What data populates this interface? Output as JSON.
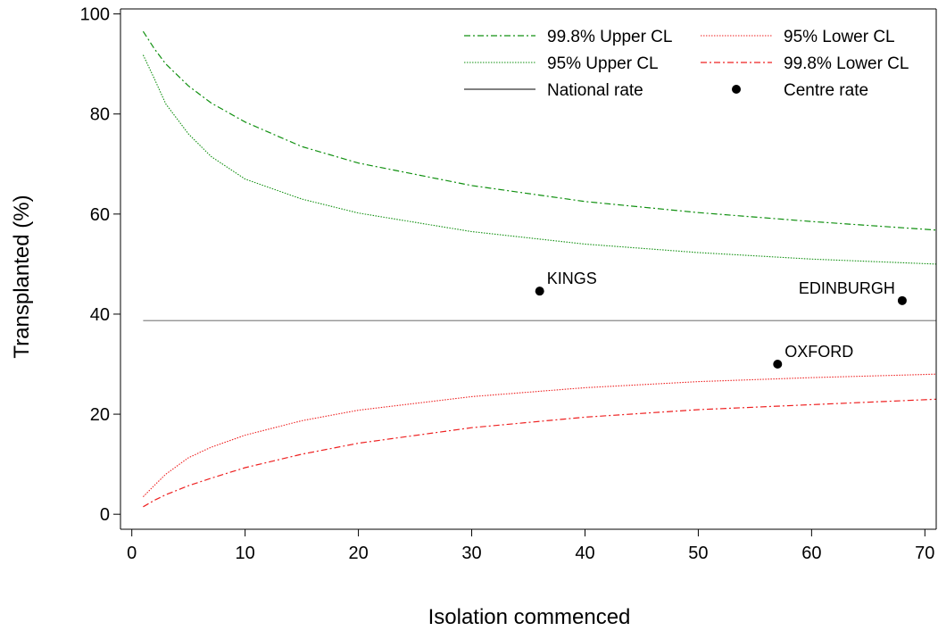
{
  "chart_data": {
    "type": "line",
    "title": "",
    "xlabel": "Isolation commenced",
    "ylabel": "Transplanted (%)",
    "xlim": [
      -1,
      71
    ],
    "ylim": [
      -3,
      101
    ],
    "x_ticks": [
      0,
      10,
      20,
      30,
      40,
      50,
      60,
      70
    ],
    "y_ticks": [
      0,
      20,
      40,
      60,
      80,
      100
    ],
    "grid": false,
    "legend_position": "top-right",
    "legend": {
      "upper998": "99.8% Upper CL",
      "upper95": "95% Upper CL",
      "national": "National rate",
      "lower95": "95% Lower CL",
      "lower998": "99.8% Lower CL",
      "centre": "Centre rate"
    },
    "colors": {
      "upper": "#109010",
      "lower": "#ee2020",
      "national": "#888888",
      "points": "#000000"
    },
    "national_rate": 38.7,
    "series": [
      {
        "key": "upper998",
        "name": "99.8% Upper CL",
        "x": [
          1,
          2,
          3,
          5,
          7,
          10,
          15,
          20,
          30,
          40,
          50,
          60,
          71
        ],
        "values": [
          96.5,
          93.0,
          90.0,
          85.6,
          82.2,
          78.4,
          73.5,
          70.2,
          65.7,
          62.5,
          60.3,
          58.5,
          56.8
        ]
      },
      {
        "key": "upper95",
        "name": "95% Upper CL",
        "x": [
          1,
          2,
          3,
          5,
          7,
          10,
          15,
          20,
          30,
          40,
          50,
          60,
          71
        ],
        "values": [
          91.8,
          87.0,
          82.0,
          76.0,
          71.5,
          67.0,
          63.0,
          60.2,
          56.5,
          54.0,
          52.3,
          51.0,
          50.0
        ]
      },
      {
        "key": "lower95",
        "name": "95% Lower CL",
        "x": [
          1,
          2,
          3,
          5,
          7,
          10,
          15,
          20,
          30,
          40,
          50,
          60,
          71
        ],
        "values": [
          3.5,
          5.8,
          8.0,
          11.3,
          13.4,
          15.8,
          18.7,
          20.8,
          23.5,
          25.3,
          26.5,
          27.3,
          28.0
        ]
      },
      {
        "key": "lower998",
        "name": "99.8% Lower CL",
        "x": [
          1,
          2,
          3,
          5,
          7,
          10,
          15,
          20,
          30,
          40,
          50,
          60,
          71
        ],
        "values": [
          1.5,
          2.8,
          3.9,
          5.7,
          7.2,
          9.3,
          12.0,
          14.2,
          17.3,
          19.4,
          20.9,
          21.9,
          23.0
        ]
      }
    ],
    "points": [
      {
        "label": "KINGS",
        "x": 36,
        "y": 44.6
      },
      {
        "label": "EDINBURGH",
        "x": 68,
        "y": 42.7
      },
      {
        "label": "OXFORD",
        "x": 57,
        "y": 30.0
      }
    ]
  }
}
